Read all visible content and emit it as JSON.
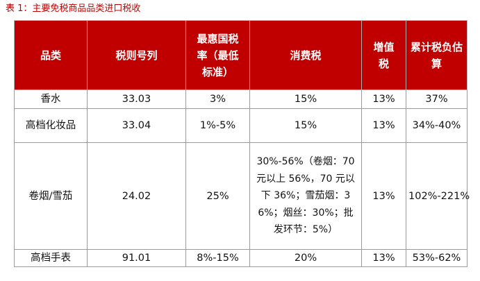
{
  "caption": "表 1：主要免税商品品类进口税收",
  "colors": {
    "header_bg": "#c00000",
    "header_text": "#ffffff",
    "caption_text": "#c00000",
    "border": "#9a9a9a"
  },
  "table": {
    "headers": [
      "品类",
      "税则号列",
      "最惠国税率（最低标准）",
      "消费税",
      "增值税",
      "累计税负估算"
    ],
    "rows": [
      [
        "香水",
        "33.03",
        "3%",
        "15%",
        "13%",
        "37%"
      ],
      [
        "高档化妆品",
        "33.04",
        "1%-5%",
        "15%",
        "13%",
        "34%-40%"
      ],
      [
        "卷烟/雪茄",
        "24.02",
        "25%",
        "30%-56%（卷烟：70 元以上 56%，70 元以下 36%；雪茄烟：36%；烟丝：30%；批发环节：5%）",
        "13%",
        "102%-221%"
      ],
      [
        "高档手表",
        "91.01",
        "8%-15%",
        "20%",
        "13%",
        "53%-62%"
      ]
    ]
  }
}
